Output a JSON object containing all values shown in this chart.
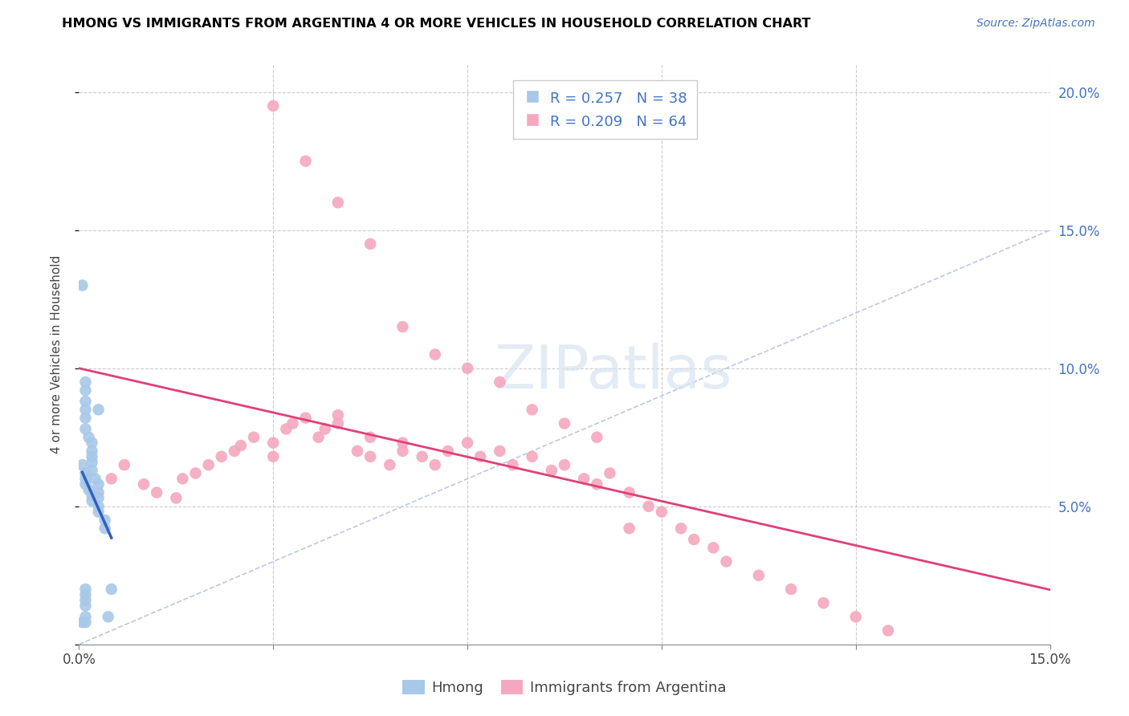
{
  "title": "HMONG VS IMMIGRANTS FROM ARGENTINA 4 OR MORE VEHICLES IN HOUSEHOLD CORRELATION CHART",
  "source": "Source: ZipAtlas.com",
  "ylabel": "4 or more Vehicles in Household",
  "xlim": [
    0.0,
    0.15
  ],
  "ylim": [
    0.0,
    0.21
  ],
  "hmong_color": "#a8c8e8",
  "argentina_color": "#f4a8be",
  "hmong_trend_color": "#3060c0",
  "argentina_trend_color": "#e0407a",
  "diagonal_color": "#c0c8e0",
  "watermark_color": "#d8e4f0",
  "legend_r1": "R = 0.257",
  "legend_n1": "N = 38",
  "legend_r2": "R = 0.209",
  "legend_n2": "N = 64",
  "hmong_x": [
    0.0005,
    0.001,
    0.001,
    0.001,
    0.001,
    0.001,
    0.001,
    0.0015,
    0.002,
    0.002,
    0.002,
    0.002,
    0.002,
    0.0025,
    0.003,
    0.003,
    0.003,
    0.003,
    0.003,
    0.004,
    0.004,
    0.0045,
    0.0005,
    0.001,
    0.001,
    0.001,
    0.0015,
    0.002,
    0.002,
    0.003,
    0.001,
    0.001,
    0.001,
    0.001,
    0.0005,
    0.001,
    0.005,
    0.001
  ],
  "hmong_y": [
    0.13,
    0.095,
    0.092,
    0.088,
    0.085,
    0.082,
    0.078,
    0.075,
    0.073,
    0.07,
    0.068,
    0.066,
    0.063,
    0.06,
    0.058,
    0.055,
    0.053,
    0.05,
    0.048,
    0.045,
    0.042,
    0.01,
    0.065,
    0.062,
    0.06,
    0.058,
    0.056,
    0.054,
    0.052,
    0.085,
    0.02,
    0.018,
    0.016,
    0.014,
    0.008,
    0.008,
    0.02,
    0.01
  ],
  "argentina_x": [
    0.005,
    0.007,
    0.01,
    0.012,
    0.015,
    0.016,
    0.018,
    0.02,
    0.022,
    0.024,
    0.025,
    0.027,
    0.03,
    0.03,
    0.032,
    0.033,
    0.035,
    0.037,
    0.038,
    0.04,
    0.04,
    0.043,
    0.045,
    0.045,
    0.048,
    0.05,
    0.05,
    0.053,
    0.055,
    0.057,
    0.06,
    0.062,
    0.065,
    0.067,
    0.07,
    0.073,
    0.075,
    0.078,
    0.08,
    0.082,
    0.085,
    0.088,
    0.09,
    0.093,
    0.095,
    0.098,
    0.1,
    0.105,
    0.11,
    0.115,
    0.12,
    0.125,
    0.03,
    0.035,
    0.04,
    0.045,
    0.05,
    0.055,
    0.06,
    0.065,
    0.07,
    0.075,
    0.08,
    0.085
  ],
  "argentina_y": [
    0.06,
    0.065,
    0.058,
    0.055,
    0.053,
    0.06,
    0.062,
    0.065,
    0.068,
    0.07,
    0.072,
    0.075,
    0.068,
    0.073,
    0.078,
    0.08,
    0.082,
    0.075,
    0.078,
    0.08,
    0.083,
    0.07,
    0.075,
    0.068,
    0.065,
    0.07,
    0.073,
    0.068,
    0.065,
    0.07,
    0.073,
    0.068,
    0.07,
    0.065,
    0.068,
    0.063,
    0.065,
    0.06,
    0.058,
    0.062,
    0.055,
    0.05,
    0.048,
    0.042,
    0.038,
    0.035,
    0.03,
    0.025,
    0.02,
    0.015,
    0.01,
    0.005,
    0.195,
    0.175,
    0.16,
    0.145,
    0.115,
    0.105,
    0.1,
    0.095,
    0.085,
    0.08,
    0.075,
    0.042
  ]
}
